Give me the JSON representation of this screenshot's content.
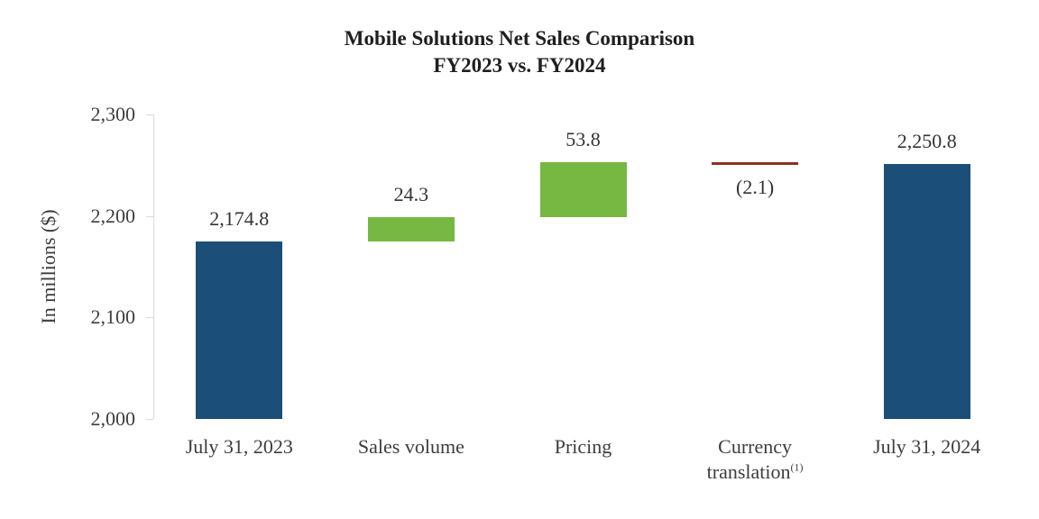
{
  "title": {
    "line1": "Mobile Solutions Net Sales Comparison",
    "line2": "FY2023 vs. FY2024"
  },
  "chart_data": {
    "type": "bar",
    "subtype": "waterfall",
    "title": "Mobile Solutions Net Sales Comparison FY2023 vs. FY2024",
    "ylabel": "In millions ($)",
    "ylim": [
      2000,
      2300
    ],
    "grid": false,
    "legend": false,
    "yticks": [
      {
        "value": 2300,
        "label": "2,300"
      },
      {
        "value": 2200,
        "label": "2,200"
      },
      {
        "value": 2100,
        "label": "2,100"
      },
      {
        "value": 2000,
        "label": "2,000"
      }
    ],
    "colors": {
      "total": "#1b4e79",
      "increase": "#77b843",
      "decrease": "#8b3120"
    },
    "categories": [
      "July 31, 2023",
      "Sales volume",
      "Pricing",
      "Currency translation(1)",
      "July 31, 2024"
    ],
    "bars": [
      {
        "name": "july-31-2023",
        "category_lines": [
          "July 31, 2023"
        ],
        "role": "total",
        "start": 2000,
        "end": 2174.8,
        "value": 2174.8,
        "label": "2,174.8",
        "label_side": "above"
      },
      {
        "name": "sales-volume",
        "category_lines": [
          "Sales volume"
        ],
        "role": "increase",
        "start": 2174.8,
        "end": 2199.1,
        "value": 24.3,
        "label": "24.3",
        "label_side": "above"
      },
      {
        "name": "pricing",
        "category_lines": [
          "Pricing"
        ],
        "role": "increase",
        "start": 2199.1,
        "end": 2252.9,
        "value": 53.8,
        "label": "53.8",
        "label_side": "above"
      },
      {
        "name": "currency-translation",
        "category_lines": [
          "Currency",
          "translation"
        ],
        "category_sup": "(1)",
        "role": "decrease",
        "start": 2252.9,
        "end": 2250.8,
        "value": -2.1,
        "label": "(2.1)",
        "label_side": "below"
      },
      {
        "name": "july-31-2024",
        "category_lines": [
          "July 31, 2024"
        ],
        "role": "total",
        "start": 2000,
        "end": 2250.8,
        "value": 2250.8,
        "label": "2,250.8",
        "label_side": "above"
      }
    ]
  }
}
